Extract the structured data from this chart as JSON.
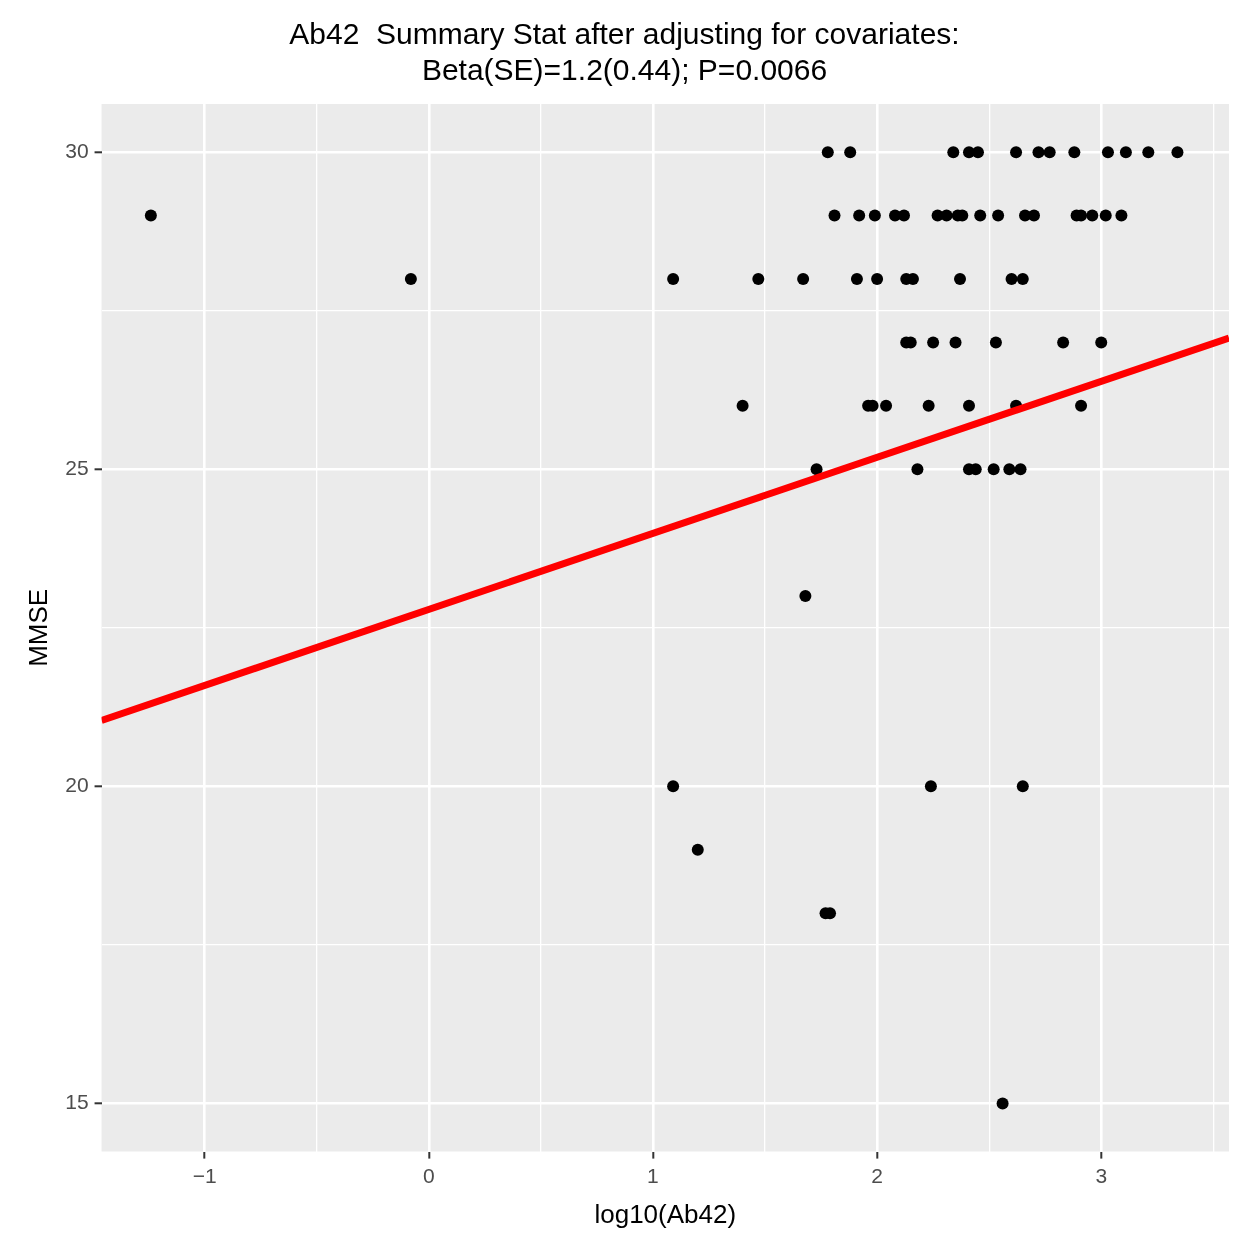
{
  "chart_data": {
    "type": "scatter",
    "title": "Ab42  Summary Stat after adjusting for covariates:\nBeta(SE)=1.2(0.44); P=0.0066",
    "xlabel": "log10(Ab42)",
    "ylabel": "MMSE",
    "xlim": [
      -1.46,
      3.57
    ],
    "ylim": [
      14.24,
      30.76
    ],
    "xticks": [
      {
        "value": -1,
        "label": "−1"
      },
      {
        "value": -0.5,
        "label": null
      },
      0,
      {
        "value": 0.5,
        "label": null
      },
      1,
      {
        "value": 1.5,
        "label": null
      },
      2,
      {
        "value": 2.5,
        "label": null
      },
      3,
      {
        "value": 3.5,
        "label": null
      }
    ],
    "yticks": [
      15,
      {
        "value": 17.5,
        "label": null
      },
      20,
      {
        "value": 22.5,
        "label": null
      },
      25,
      {
        "value": 27.5,
        "label": null
      },
      30
    ],
    "grid": true,
    "legend": false,
    "marker": "circle",
    "series": [
      {
        "color": "#000000",
        "x": [
          1.78,
          1.88,
          2.34,
          2.41,
          2.45,
          2.62,
          2.72,
          2.77,
          2.88,
          3.03,
          3.11,
          3.21,
          3.34,
          -1.24,
          1.81,
          1.92,
          1.99,
          2.08,
          2.12,
          2.27,
          2.31,
          2.36,
          2.38,
          2.46,
          2.54,
          2.66,
          2.7,
          2.89,
          2.91,
          2.96,
          3.02,
          3.09,
          -0.08,
          1.09,
          1.47,
          1.67,
          1.91,
          2.0,
          2.13,
          2.16,
          2.37,
          2.6,
          2.65,
          2.13,
          2.15,
          2.25,
          2.35,
          2.53,
          2.83,
          3.0,
          1.4,
          1.96,
          1.98,
          2.04,
          2.23,
          2.41,
          2.62,
          2.91,
          1.73,
          2.18,
          2.41,
          2.44,
          2.52,
          2.59,
          2.64,
          1.68,
          1.09,
          2.24,
          2.65,
          1.2,
          1.77,
          1.79,
          2.56
        ],
        "values": [
          30,
          30,
          30,
          30,
          30,
          30,
          30,
          30,
          30,
          30,
          30,
          30,
          30,
          29,
          29,
          29,
          29,
          29,
          29,
          29,
          29,
          29,
          29,
          29,
          29,
          29,
          29,
          29,
          29,
          29,
          29,
          29,
          28,
          28,
          28,
          28,
          28,
          28,
          28,
          28,
          28,
          28,
          28,
          27,
          27,
          27,
          27,
          27,
          27,
          27,
          26,
          26,
          26,
          26,
          26,
          26,
          26,
          26,
          25,
          25,
          25,
          25,
          25,
          25,
          25,
          23,
          20,
          20,
          20,
          19,
          18,
          18,
          15
        ]
      },
      {
        "type": "line",
        "color": "#ff0000",
        "marker": "none",
        "line_style": "solid",
        "x": [
          -1.46,
          3.57
        ],
        "values": [
          21.04,
          27.07
        ]
      }
    ]
  }
}
